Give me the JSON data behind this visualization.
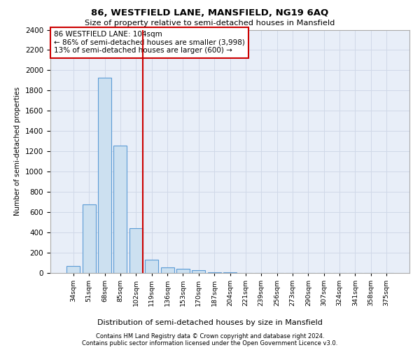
{
  "title1": "86, WESTFIELD LANE, MANSFIELD, NG19 6AQ",
  "title2": "Size of property relative to semi-detached houses in Mansfield",
  "xlabel": "Distribution of semi-detached houses by size in Mansfield",
  "ylabel": "Number of semi-detached properties",
  "footnote1": "Contains HM Land Registry data © Crown copyright and database right 2024.",
  "footnote2": "Contains public sector information licensed under the Open Government Licence v3.0.",
  "categories": [
    "34sqm",
    "51sqm",
    "68sqm",
    "85sqm",
    "102sqm",
    "119sqm",
    "136sqm",
    "153sqm",
    "170sqm",
    "187sqm",
    "204sqm",
    "221sqm",
    "239sqm",
    "256sqm",
    "273sqm",
    "290sqm",
    "307sqm",
    "324sqm",
    "341sqm",
    "358sqm",
    "375sqm"
  ],
  "values": [
    68,
    680,
    1930,
    1260,
    440,
    130,
    55,
    40,
    25,
    10,
    5,
    2,
    1,
    0,
    0,
    0,
    0,
    0,
    0,
    0,
    0
  ],
  "bar_color": "#cce0f0",
  "bar_edge_color": "#5b9bd5",
  "vline_color": "#cc0000",
  "vline_bin_index": 4,
  "annotation_title": "86 WESTFIELD LANE: 104sqm",
  "annotation_line1": "← 86% of semi-detached houses are smaller (3,998)",
  "annotation_line2": "13% of semi-detached houses are larger (600) →",
  "annotation_box_color": "#ffffff",
  "annotation_box_edge_color": "#cc0000",
  "ylim": [
    0,
    2400
  ],
  "yticks": [
    0,
    200,
    400,
    600,
    800,
    1000,
    1200,
    1400,
    1600,
    1800,
    2000,
    2200,
    2400
  ],
  "grid_color": "#d0d8e8",
  "bg_color": "#e8eef8"
}
